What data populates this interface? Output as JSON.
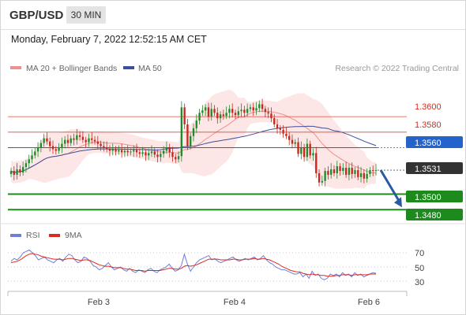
{
  "header": {
    "symbol": "GBP/USD",
    "timeframe": "30 MIN",
    "datetime": "Monday, February 7, 2022 12:52:15 AM CET"
  },
  "credit": "Research © 2022 Trading Central",
  "colors": {
    "candle_up": "#1e8c2e",
    "candle_down": "#c7281d",
    "ma20": "#f08f8f",
    "bollinger_fill": "#fde3e3",
    "ma50": "#3a4f9e",
    "resistance": "#e0483a",
    "support": "#1c8a1c",
    "current_tag": "#333333",
    "pivot_tag": "#2563cc",
    "forecast_arrow": "#2c5aa0",
    "rsi": "#6f7fd6",
    "rsi_ma": "#d92b1f"
  },
  "chart_data": [
    {
      "type": "candlestick",
      "title": "",
      "legend": [
        {
          "name": "MA 20 + Bollinger Bands",
          "color": "#f08f8f"
        },
        {
          "name": "MA 50",
          "color": "#3a4f9e"
        }
      ],
      "x_ticks": [
        "Feb 3",
        "Feb 4",
        "Feb 6"
      ],
      "ylim": [
        1.3466,
        1.3653
      ],
      "close": [
        1.353,
        1.3525,
        1.3532,
        1.3528,
        1.3535,
        1.354,
        1.3545,
        1.355,
        1.3555,
        1.356,
        1.3566,
        1.3572,
        1.3568,
        1.3562,
        1.3558,
        1.3556,
        1.356,
        1.3565,
        1.357,
        1.3566,
        1.3572,
        1.357,
        1.3576,
        1.3574,
        1.357,
        1.3567,
        1.3572,
        1.357,
        1.3568,
        1.3565,
        1.3562,
        1.356,
        1.3558,
        1.3556,
        1.3558,
        1.3555,
        1.3557,
        1.3554,
        1.3556,
        1.3554,
        1.3555,
        1.3557,
        1.3554,
        1.3552,
        1.3554,
        1.355,
        1.3553,
        1.3555,
        1.3551,
        1.3548,
        1.3552,
        1.3556,
        1.356,
        1.3554,
        1.3548,
        1.3545,
        1.3549,
        1.3612,
        1.359,
        1.3562,
        1.3575,
        1.3585,
        1.3595,
        1.3605,
        1.3608,
        1.3612,
        1.36,
        1.361,
        1.3605,
        1.3598,
        1.3603,
        1.3601,
        1.3605,
        1.361,
        1.3605,
        1.3602,
        1.3607,
        1.3609,
        1.3605,
        1.361,
        1.3612,
        1.3608,
        1.3611,
        1.3616,
        1.361,
        1.3606,
        1.3604,
        1.3598,
        1.359,
        1.3585,
        1.3583,
        1.3578,
        1.3575,
        1.357,
        1.3565,
        1.3567,
        1.3552,
        1.356,
        1.3548,
        1.3565,
        1.355,
        1.3553,
        1.3527,
        1.3515,
        1.3517,
        1.353,
        1.3525,
        1.3532,
        1.3527,
        1.3536,
        1.353,
        1.3534,
        1.3525,
        1.3534,
        1.3526,
        1.3531,
        1.3522,
        1.3527,
        1.352,
        1.3526,
        1.3531,
        1.353,
        1.3531
      ],
      "resistance_levels": [
        1.36,
        1.358
      ],
      "pivot": 1.356,
      "last_price": 1.3531,
      "support_levels": [
        1.35,
        1.348
      ],
      "price_labels": {
        "r1": "1.3600",
        "r2": "1.3580",
        "pivot": "1.3560",
        "last": "1.3531",
        "s1": "1.3500",
        "s2": "1.3480"
      }
    },
    {
      "type": "line",
      "title": "",
      "legend": [
        {
          "name": "RSI",
          "color": "#6f7fd6"
        },
        {
          "name": "9MA",
          "color": "#d92b1f"
        }
      ],
      "ylim": [
        20,
        80
      ],
      "y_ticks": [
        "70",
        "50",
        "30"
      ],
      "reference_levels": [
        70,
        50,
        30
      ],
      "rsi": [
        58,
        62,
        60,
        64,
        70,
        72,
        74,
        70,
        66,
        60,
        62,
        64,
        60,
        58,
        56,
        60,
        62,
        58,
        64,
        68,
        66,
        60,
        56,
        58,
        64,
        62,
        58,
        52,
        50,
        46,
        48,
        52,
        56,
        50,
        46,
        48,
        50,
        46,
        44,
        48,
        44,
        42,
        46,
        44,
        42,
        46,
        48,
        44,
        42,
        46,
        48,
        50,
        54,
        48,
        44,
        46,
        52,
        68,
        54,
        44,
        50,
        56,
        60,
        62,
        64,
        66,
        60,
        62,
        58,
        56,
        58,
        60,
        62,
        64,
        60,
        58,
        60,
        62,
        60,
        62,
        64,
        60,
        62,
        66,
        60,
        56,
        54,
        50,
        48,
        46,
        46,
        44,
        42,
        40,
        40,
        42,
        36,
        40,
        34,
        44,
        38,
        40,
        34,
        32,
        34,
        40,
        38,
        40,
        36,
        42,
        38,
        40,
        36,
        42,
        38,
        40,
        36,
        38,
        40,
        42,
        41
      ],
      "rsi_ma": [
        56,
        57,
        58,
        60,
        63,
        66,
        68,
        69,
        68,
        67,
        65,
        64,
        63,
        62,
        61,
        61,
        61,
        60,
        61,
        62,
        62,
        61,
        60,
        59,
        60,
        60,
        59,
        57,
        55,
        53,
        52,
        51,
        51,
        50,
        49,
        49,
        49,
        48,
        47,
        47,
        46,
        45,
        45,
        45,
        44,
        45,
        45,
        45,
        45,
        45,
        46,
        47,
        48,
        48,
        47,
        47,
        48,
        51,
        52,
        51,
        52,
        53,
        55,
        57,
        59,
        61,
        61,
        61,
        61,
        60,
        60,
        60,
        60,
        61,
        61,
        60,
        60,
        61,
        61,
        61,
        62,
        61,
        61,
        62,
        61,
        60,
        58,
        56,
        54,
        51,
        49,
        47,
        45,
        44,
        43,
        43,
        41,
        40,
        39,
        40,
        39,
        39,
        38,
        38,
        37,
        37,
        37,
        38,
        38,
        39,
        39,
        39,
        38,
        39,
        39,
        39,
        39,
        39,
        40,
        40,
        40
      ],
      "x_ticks": [
        "Feb 3",
        "Feb 4",
        "Feb 6"
      ]
    }
  ]
}
